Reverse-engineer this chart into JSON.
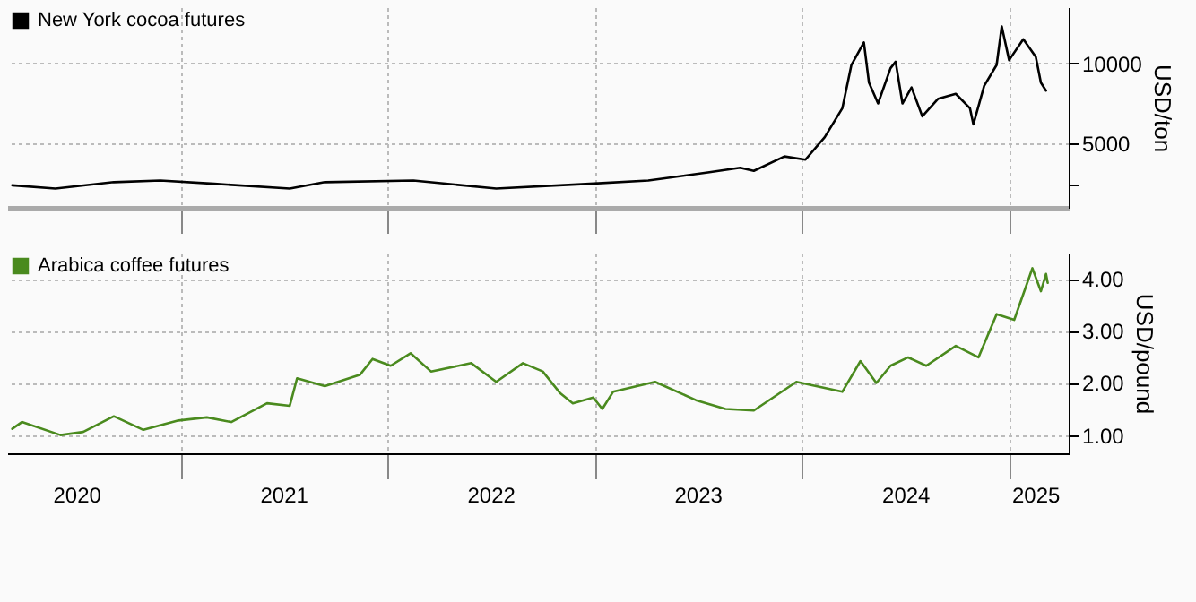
{
  "chart_data": [
    {
      "type": "line",
      "legend": "top left",
      "grid": true,
      "tick_labels": "y",
      "ylabel": "USD/ton",
      "xlim": [
        "2020-03-01",
        "2025-04-15"
      ],
      "xticks": [
        {
          "value": "2021-01-01",
          "label": null
        },
        {
          "value": "2022-01-01",
          "label": null
        },
        {
          "value": "2023-01-01",
          "label": null
        },
        {
          "value": "2024-01-01",
          "label": null
        },
        {
          "value": "2025-01-01",
          "label": null
        }
      ],
      "ylim": [
        1000,
        13500
      ],
      "yticks": [
        {
          "value": 2500,
          "label": null
        },
        5000,
        10000
      ],
      "x": [
        "2020-03-10",
        "2020-05-25",
        "2020-09-05",
        "2020-11-26",
        "2021-03-01",
        "2021-07-12",
        "2021-09-12",
        "2022-02-15",
        "2022-07-11",
        "2022-12-23",
        "2023-04-05",
        "2023-07-19",
        "2023-09-14",
        "2023-10-08",
        "2023-12-01",
        "2024-01-07",
        "2024-02-10",
        "2024-03-12",
        "2024-03-28",
        "2024-04-19",
        "2024-04-28",
        "2024-05-14",
        "2024-06-05",
        "2024-06-14",
        "2024-06-26",
        "2024-07-12",
        "2024-07-31",
        "2024-08-28",
        "2024-09-28",
        "2024-10-23",
        "2024-10-29",
        "2024-11-17",
        "2024-12-09",
        "2024-12-18",
        "2024-12-31",
        "2025-01-25",
        "2025-02-16",
        "2025-02-25",
        "2025-03-06"
      ],
      "series": [
        {
          "name": "New York cocoa futures",
          "color": "#000000",
          "values": [
            2400,
            2200,
            2600,
            2700,
            2500,
            2200,
            2600,
            2700,
            2200,
            2500,
            2700,
            3200,
            3500,
            3300,
            4200,
            4000,
            5400,
            7200,
            9900,
            11300,
            8800,
            7500,
            9700,
            10100,
            7500,
            8500,
            6700,
            7800,
            8100,
            7200,
            6200,
            8600,
            9900,
            12300,
            10200,
            11500,
            10400,
            8800,
            8300
          ]
        }
      ]
    },
    {
      "type": "line",
      "legend": "top left",
      "grid": true,
      "ylabel": "USD/pound",
      "xlim": [
        "2020-03-01",
        "2025-04-15"
      ],
      "xticks": [
        {
          "value": "2020-07-01",
          "label": "2020"
        },
        {
          "value": "2021-01-01",
          "label": null
        },
        {
          "value": "2021-07-01",
          "label": "2021"
        },
        {
          "value": "2022-01-01",
          "label": null
        },
        {
          "value": "2022-07-01",
          "label": "2022"
        },
        {
          "value": "2023-01-01",
          "label": null
        },
        {
          "value": "2023-07-01",
          "label": "2023"
        },
        {
          "value": "2024-01-01",
          "label": null
        },
        {
          "value": "2024-07-01",
          "label": "2024"
        },
        {
          "value": "2025-01-01",
          "label": null
        },
        {
          "value": "2025-02-15",
          "label": "2025"
        }
      ],
      "ylim": [
        0.65,
        4.5
      ],
      "yticks": [
        {
          "value": 1,
          "label": "1.00"
        },
        {
          "value": 2,
          "label": "2.00"
        },
        {
          "value": 3,
          "label": "3.00"
        },
        {
          "value": 4,
          "label": "4.00"
        }
      ],
      "x": [
        "2020-03-10",
        "2020-03-27",
        "2020-06-03",
        "2020-07-13",
        "2020-09-05",
        "2020-10-27",
        "2020-12-28",
        "2021-02-16",
        "2021-03-31",
        "2021-06-02",
        "2021-07-12",
        "2021-07-25",
        "2021-09-12",
        "2021-11-13",
        "2021-12-05",
        "2022-01-06",
        "2022-02-10",
        "2022-03-18",
        "2022-05-28",
        "2022-07-11",
        "2022-08-27",
        "2022-10-01",
        "2022-11-01",
        "2022-11-23",
        "2022-12-29",
        "2023-01-14",
        "2023-02-02",
        "2023-04-17",
        "2023-06-28",
        "2023-08-19",
        "2023-10-08",
        "2023-12-22",
        "2024-03-12",
        "2024-04-13",
        "2024-05-11",
        "2024-06-05",
        "2024-07-06",
        "2024-08-07",
        "2024-09-28",
        "2024-11-07",
        "2024-12-09",
        "2025-01-09",
        "2025-02-10",
        "2025-02-25",
        "2025-03-06",
        "2025-03-09"
      ],
      "series": [
        {
          "name": "Arabica coffee futures",
          "color": "#4a8a1e",
          "values": [
            1.12,
            1.25,
            1.0,
            1.06,
            1.36,
            1.1,
            1.28,
            1.34,
            1.25,
            1.61,
            1.56,
            2.09,
            1.94,
            2.16,
            2.46,
            2.33,
            2.57,
            2.22,
            2.38,
            2.02,
            2.38,
            2.22,
            1.8,
            1.61,
            1.72,
            1.5,
            1.83,
            2.02,
            1.67,
            1.5,
            1.47,
            2.02,
            1.83,
            2.42,
            2.0,
            2.33,
            2.49,
            2.33,
            2.71,
            2.49,
            3.32,
            3.21,
            4.2,
            3.76,
            4.09,
            3.92
          ]
        }
      ]
    }
  ]
}
